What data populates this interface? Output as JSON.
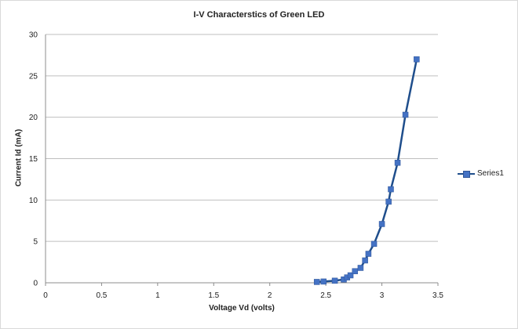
{
  "chart_data": {
    "type": "line",
    "title": "I-V Characterstics of Green LED",
    "xlabel": "Voltage Vd (volts)",
    "ylabel": "Current Id (mA)",
    "xlim": [
      0,
      3.5
    ],
    "ylim": [
      0,
      30
    ],
    "xticks": [
      "0",
      "0.5",
      "1",
      "1.5",
      "2",
      "2.5",
      "3",
      "3.5"
    ],
    "yticks": [
      "0",
      "5",
      "10",
      "15",
      "20",
      "25",
      "30"
    ],
    "grid": "horizontal",
    "legend_position": "right",
    "series": [
      {
        "name": "Series1",
        "color": "#1f4e8c",
        "marker_color": "#4472c4",
        "x": [
          2.42,
          2.48,
          2.58,
          2.66,
          2.69,
          2.72,
          2.76,
          2.81,
          2.85,
          2.88,
          2.93,
          3.0,
          3.06,
          3.08,
          3.14,
          3.21,
          3.31
        ],
        "y": [
          0.1,
          0.15,
          0.25,
          0.4,
          0.65,
          0.9,
          1.4,
          1.8,
          2.7,
          3.5,
          4.7,
          7.1,
          9.8,
          11.3,
          14.5,
          20.3,
          27.0
        ]
      }
    ]
  }
}
